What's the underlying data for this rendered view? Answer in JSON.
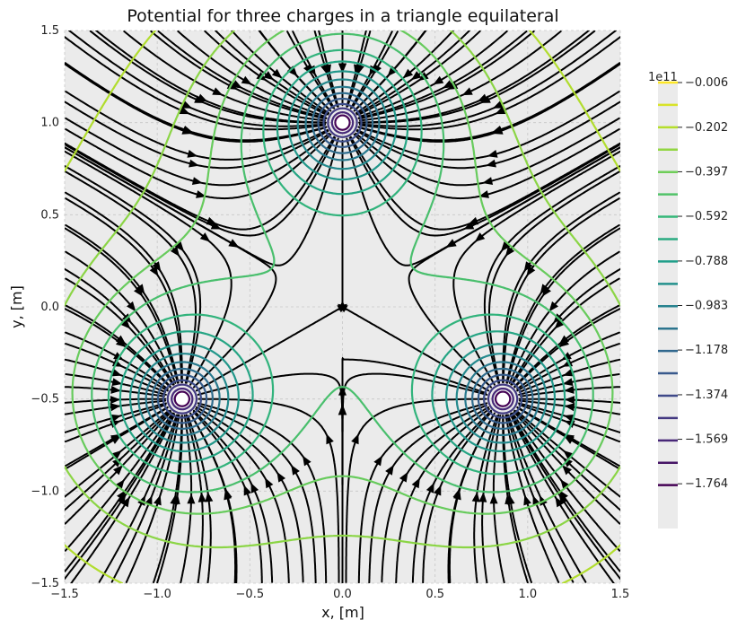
{
  "chart_data": {
    "type": "contour",
    "title": "Potential for three charges in a triangle equilateral",
    "xlabel": "x, [m]",
    "ylabel": "y, [m]",
    "xlim": [
      -1.5,
      1.5
    ],
    "ylim": [
      -1.5,
      1.5
    ],
    "xticks": [
      "−1.5",
      "−1.0",
      "−0.5",
      "0.0",
      "0.5",
      "1.0",
      "1.5"
    ],
    "yticks": [
      "−1.5",
      "−1.0",
      "−0.5",
      "0.0",
      "0.5",
      "1.0",
      "1.5"
    ],
    "grid": true,
    "charges": [
      {
        "x": 0.0,
        "y": 1.0
      },
      {
        "x": -0.866,
        "y": -0.5
      },
      {
        "x": 0.866,
        "y": -0.5
      }
    ],
    "colorbar": {
      "exponent_label": "1e11",
      "tick_labels": [
        "−0.006",
        "−0.202",
        "−0.397",
        "−0.592",
        "−0.788",
        "−0.983",
        "−1.178",
        "−1.374",
        "−1.569",
        "−1.764"
      ],
      "tick_values": [
        -0.006,
        -0.202,
        -0.397,
        -0.592,
        -0.788,
        -0.983,
        -1.178,
        -1.374,
        -1.569,
        -1.764
      ],
      "level_count": 19,
      "vmin": -1.96,
      "vmax": -0.006,
      "colormap": "viridis"
    }
  },
  "colors": {
    "background": "#ebebeb",
    "grid": "#c7c7c7",
    "streamline": "#000000",
    "charge_fill": "#ffffff"
  }
}
